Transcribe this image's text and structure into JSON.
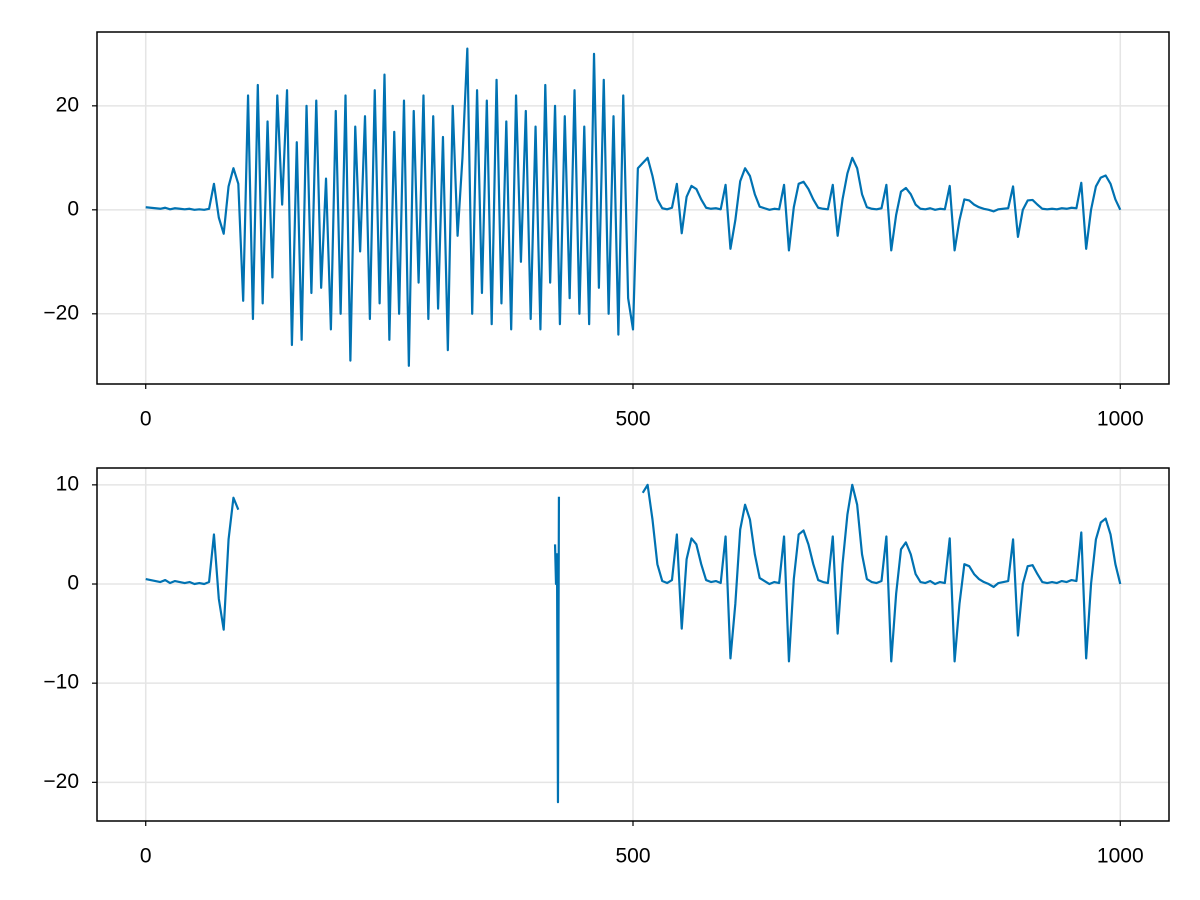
{
  "chart_data": [
    {
      "type": "line",
      "grid": true,
      "xlim": [
        -50,
        1050
      ],
      "ylim": [
        -33.5,
        34.2
      ],
      "xticks": [
        0,
        500,
        1000
      ],
      "yticks": [
        {
          "value": -20,
          "label": "−20"
        },
        0,
        20
      ],
      "x": [
        0,
        5,
        10,
        15,
        20,
        25,
        30,
        35,
        40,
        45,
        50,
        55,
        60,
        65,
        70,
        75,
        80,
        85,
        90,
        95,
        100,
        105,
        110,
        115,
        120,
        125,
        130,
        135,
        140,
        145,
        150,
        155,
        160,
        165,
        170,
        175,
        180,
        185,
        190,
        195,
        200,
        205,
        210,
        215,
        220,
        225,
        230,
        235,
        240,
        245,
        250,
        255,
        260,
        265,
        270,
        275,
        280,
        285,
        290,
        295,
        300,
        305,
        310,
        315,
        320,
        325,
        330,
        335,
        340,
        345,
        350,
        355,
        360,
        365,
        370,
        375,
        380,
        385,
        390,
        395,
        400,
        405,
        410,
        415,
        420,
        425,
        430,
        435,
        440,
        445,
        450,
        455,
        460,
        465,
        470,
        475,
        480,
        485,
        490,
        495,
        500,
        505,
        510,
        515,
        520,
        525,
        530,
        535,
        540,
        545,
        550,
        555,
        560,
        565,
        570,
        575,
        580,
        585,
        590,
        595,
        600,
        605,
        610,
        615,
        620,
        625,
        630,
        635,
        640,
        645,
        650,
        655,
        660,
        665,
        670,
        675,
        680,
        685,
        690,
        695,
        700,
        705,
        710,
        715,
        720,
        725,
        730,
        735,
        740,
        745,
        750,
        755,
        760,
        765,
        770,
        775,
        780,
        785,
        790,
        795,
        800,
        805,
        810,
        815,
        820,
        825,
        830,
        835,
        840,
        845,
        850,
        855,
        860,
        865,
        870,
        875,
        880,
        885,
        890,
        895,
        900,
        905,
        910,
        915,
        920,
        925,
        930,
        935,
        940,
        945,
        950,
        955,
        960,
        965,
        970,
        975,
        980,
        985,
        990,
        995,
        1000
      ],
      "series": [
        {
          "color": "#0072b2",
          "values": [
            0.5,
            0.4,
            0.3,
            0.2,
            0.4,
            0.1,
            0.3,
            0.2,
            0.1,
            0.2,
            0.0,
            0.1,
            0.0,
            0.2,
            5.0,
            -1.5,
            -4.6,
            4.5,
            8.0,
            5.0,
            -17.5,
            22,
            -21,
            24,
            -18,
            17,
            -13,
            22,
            1,
            23,
            -26,
            13,
            -25,
            20,
            -16,
            21,
            -15,
            6,
            -23,
            19,
            -20,
            22,
            -29,
            16,
            -8,
            18,
            -21,
            23,
            -18,
            26,
            -25,
            15,
            -20,
            21,
            -30,
            19,
            -14,
            22,
            -21,
            18,
            -19,
            14,
            -27,
            20,
            -5,
            10,
            31,
            -20,
            23,
            -16,
            21,
            -22,
            25,
            -18,
            17,
            -23,
            22,
            -10,
            19,
            -21,
            16,
            -23,
            24,
            -14,
            20,
            -22,
            18,
            -17,
            23,
            -20,
            16,
            -22,
            30,
            -15,
            25,
            -20,
            18,
            -24,
            22,
            -17,
            -23,
            8,
            9,
            10,
            6.5,
            2,
            0.3,
            0.1,
            0.4,
            5,
            -4.5,
            2.5,
            4.6,
            4,
            2,
            0.4,
            0.2,
            0.3,
            0.1,
            4.8,
            -7.5,
            -2,
            5.5,
            8,
            6.5,
            3,
            0.6,
            0.3,
            0,
            0.2,
            0.1,
            4.8,
            -7.8,
            0.5,
            5,
            5.4,
            4,
            2,
            0.4,
            0.2,
            0.1,
            4.8,
            -5,
            2,
            7,
            10,
            8,
            3,
            0.5,
            0.2,
            0.1,
            0.3,
            4.8,
            -7.8,
            -1,
            3.5,
            4.2,
            3,
            1,
            0.2,
            0.1,
            0.3,
            0,
            0.2,
            0.1,
            4.6,
            -7.8,
            -2,
            2,
            1.8,
            1,
            0.5,
            0.2,
            0,
            -0.3,
            0.1,
            0.2,
            0.3,
            4.5,
            -5.2,
            0,
            1.8,
            1.9,
            1,
            0.2,
            0.1,
            0.2,
            0.1,
            0.3,
            0.2,
            0.4,
            0.3,
            5.2,
            -7.5,
            0,
            4.5,
            6.2,
            6.6,
            5,
            2,
            0
          ]
        }
      ]
    },
    {
      "type": "line",
      "grid": true,
      "xlim": [
        -50,
        1050
      ],
      "ylim": [
        -23.9,
        11.7
      ],
      "xticks": [
        0,
        500,
        1000
      ],
      "yticks": [
        {
          "value": -20,
          "label": "−20"
        },
        {
          "value": -10,
          "label": "−10"
        },
        0,
        10
      ],
      "x": [
        0,
        5,
        10,
        15,
        20,
        25,
        30,
        35,
        40,
        45,
        50,
        55,
        60,
        65,
        70,
        75,
        80,
        85,
        90,
        95,
        100,
        420,
        421,
        422,
        423,
        424,
        425,
        510,
        515,
        520,
        525,
        530,
        535,
        540,
        545,
        550,
        555,
        560,
        565,
        570,
        575,
        580,
        585,
        590,
        595,
        600,
        605,
        610,
        615,
        620,
        625,
        630,
        635,
        640,
        645,
        650,
        655,
        660,
        665,
        670,
        675,
        680,
        685,
        690,
        695,
        700,
        705,
        710,
        715,
        720,
        725,
        730,
        735,
        740,
        745,
        750,
        755,
        760,
        765,
        770,
        775,
        780,
        785,
        790,
        795,
        800,
        805,
        810,
        815,
        820,
        825,
        830,
        835,
        840,
        845,
        850,
        855,
        860,
        865,
        870,
        875,
        880,
        885,
        890,
        895,
        900,
        905,
        910,
        915,
        920,
        925,
        930,
        935,
        940,
        945,
        950,
        955,
        960,
        965,
        970,
        975,
        980,
        985,
        990,
        995,
        1000
      ],
      "series": [
        {
          "color": "#0072b2",
          "values": [
            0.5,
            0.4,
            0.3,
            0.2,
            0.4,
            0.1,
            0.3,
            0.2,
            0.1,
            0.2,
            0.0,
            0.1,
            0.0,
            0.2,
            5.0,
            -1.5,
            -4.6,
            4.5,
            8.7,
            7.5,
            null,
            4,
            0,
            3,
            -22,
            8.8,
            null,
            9.2,
            10,
            6.5,
            2,
            0.3,
            0.1,
            0.4,
            5,
            -4.5,
            2.5,
            4.6,
            4,
            2,
            0.4,
            0.2,
            0.3,
            0.1,
            4.8,
            -7.5,
            -2,
            5.5,
            8,
            6.5,
            3,
            0.6,
            0.3,
            0,
            0.2,
            0.1,
            4.8,
            -7.8,
            0.5,
            5,
            5.4,
            4,
            2,
            0.4,
            0.2,
            0.1,
            4.8,
            -5,
            2,
            7,
            10,
            8,
            3,
            0.5,
            0.2,
            0.1,
            0.3,
            4.8,
            -7.8,
            -1,
            3.5,
            4.2,
            3,
            1,
            0.2,
            0.1,
            0.3,
            0,
            0.2,
            0.1,
            4.6,
            -7.8,
            -2,
            2,
            1.8,
            1,
            0.5,
            0.2,
            0,
            -0.3,
            0.1,
            0.2,
            0.3,
            4.5,
            -5.2,
            0,
            1.8,
            1.9,
            1,
            0.2,
            0.1,
            0.2,
            0.1,
            0.3,
            0.2,
            0.4,
            0.3,
            5.2,
            -7.5,
            0,
            4.5,
            6.2,
            6.6,
            5,
            2,
            0
          ]
        }
      ]
    }
  ]
}
